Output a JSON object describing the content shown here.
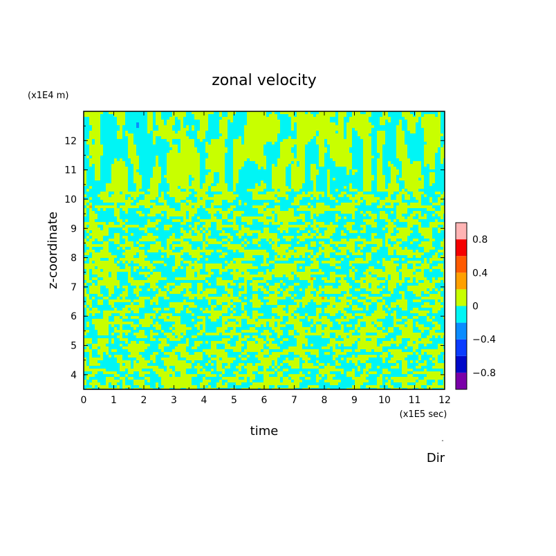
{
  "chart_data": {
    "type": "heatmap",
    "title": "zonal velocity",
    "xlabel": "time",
    "ylabel": "z-coordinate",
    "x_unit": "(x1E5 sec)",
    "y_unit": "(x1E4 m)",
    "xlim": [
      0,
      12
    ],
    "ylim": [
      3.5,
      13
    ],
    "x_ticks": [
      "0",
      "1",
      "2",
      "3",
      "4",
      "5",
      "6",
      "7",
      "8",
      "9",
      "10",
      "11",
      "12"
    ],
    "y_ticks": [
      "4",
      "5",
      "6",
      "7",
      "8",
      "9",
      "10",
      "11",
      "12"
    ],
    "field_summary": "mostly cyan (-0.2 to 0) and yellow-green (0 to 0.2) small-scale structures; vertical streaks near the top",
    "colorbar": {
      "levels": [
        -1.0,
        -0.8,
        -0.6,
        -0.4,
        -0.2,
        0,
        0.2,
        0.4,
        0.6,
        0.8,
        1.0
      ],
      "colors": [
        "#7a00a8",
        "#0008c8",
        "#0a3cff",
        "#0a8cff",
        "#00f5f5",
        "#c8ff00",
        "#ffa000",
        "#ff5a00",
        "#f50000",
        "#ffb4b4"
      ],
      "tick_labels": [
        "0.8",
        "0.4",
        "0",
        "-0.4",
        "-0.8"
      ]
    },
    "annotation": "Dir"
  }
}
